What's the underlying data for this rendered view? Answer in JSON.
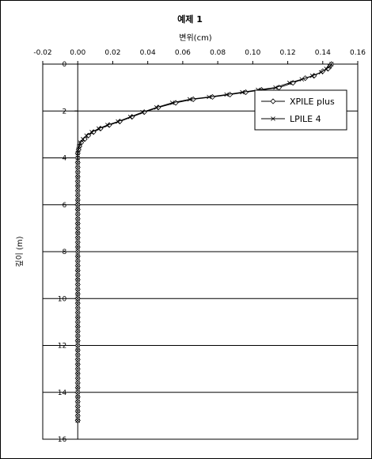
{
  "chart_data": {
    "type": "line",
    "title": "예제 1",
    "xlabel": "변위(cm)",
    "ylabel": "깊이 (m)",
    "xlim": [
      -0.02,
      0.16
    ],
    "ylim": [
      0,
      16
    ],
    "y_inverted": true,
    "x_ticks": [
      "-0.02",
      "0.00",
      "0.02",
      "0.04",
      "0.06",
      "0.08",
      "0.10",
      "0.12",
      "0.14",
      "0.16"
    ],
    "y_ticks": [
      "0",
      "2",
      "4",
      "6",
      "8",
      "10",
      "12",
      "14",
      "16"
    ],
    "grid": "horizontal",
    "legend": "right",
    "series": [
      {
        "name": "XPILE plus",
        "marker": "diamond",
        "color": "#000000",
        "x": [
          0.145,
          0.144,
          0.143,
          0.14,
          0.135,
          0.13,
          0.123,
          0.115,
          0.105,
          0.096,
          0.087,
          0.077,
          0.066,
          0.056,
          0.046,
          0.038,
          0.031,
          0.024,
          0.018,
          0.013,
          0.009,
          0.006,
          0.004,
          0.002,
          0.001,
          0.0005,
          0.0,
          0.0,
          0.0,
          0.0,
          0.0
        ],
        "y": [
          0.0,
          0.1,
          0.2,
          0.3,
          0.5,
          0.6,
          0.8,
          1.0,
          1.1,
          1.2,
          1.3,
          1.4,
          1.5,
          1.65,
          1.85,
          2.05,
          2.25,
          2.45,
          2.6,
          2.75,
          2.9,
          3.05,
          3.2,
          3.35,
          3.5,
          3.65,
          3.8,
          4.0,
          6.0,
          10.0,
          15.2
        ]
      },
      {
        "name": "LPILE 4",
        "marker": "x",
        "color": "#000000",
        "x": [
          0.145,
          0.144,
          0.142,
          0.139,
          0.134,
          0.128,
          0.121,
          0.113,
          0.103,
          0.094,
          0.085,
          0.075,
          0.064,
          0.054,
          0.045,
          0.037,
          0.03,
          0.023,
          0.017,
          0.012,
          0.008,
          0.005,
          0.003,
          0.0015,
          0.0008,
          0.0003,
          0.0,
          0.0,
          0.0,
          0.0,
          0.0
        ],
        "y": [
          0.0,
          0.1,
          0.2,
          0.35,
          0.5,
          0.65,
          0.8,
          1.0,
          1.1,
          1.2,
          1.3,
          1.4,
          1.5,
          1.65,
          1.85,
          2.05,
          2.25,
          2.45,
          2.6,
          2.75,
          2.9,
          3.05,
          3.2,
          3.35,
          3.5,
          3.65,
          3.8,
          4.0,
          6.0,
          10.0,
          15.2
        ]
      }
    ]
  }
}
